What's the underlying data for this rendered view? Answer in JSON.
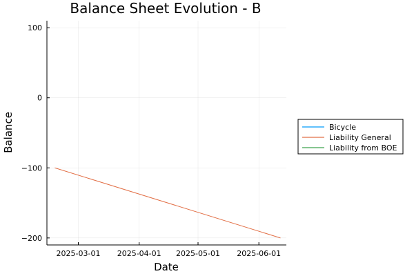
{
  "chart_data": {
    "type": "line",
    "title": "Balance Sheet Evolution - B",
    "xlabel": "Date",
    "ylabel": "Balance",
    "x_type": "date",
    "xlim": [
      "2025-02-13",
      "2025-06-15"
    ],
    "ylim": [
      -210,
      110
    ],
    "x_ticks": [
      "2025-03-01",
      "2025-04-01",
      "2025-05-01",
      "2025-06-01"
    ],
    "y_ticks": [
      100,
      0,
      -100,
      -200
    ],
    "grid": true,
    "legend_position": "outer-right",
    "series": [
      {
        "name": "Bicycle",
        "color": "#009AFA",
        "x": [],
        "y": []
      },
      {
        "name": "Liability General",
        "color": "#E26F46",
        "x": [
          "2025-02-17",
          "2025-06-12"
        ],
        "y": [
          -100,
          -200
        ]
      },
      {
        "name": "Liability from BOE",
        "color": "#3EA44E",
        "x": [],
        "y": []
      }
    ]
  }
}
